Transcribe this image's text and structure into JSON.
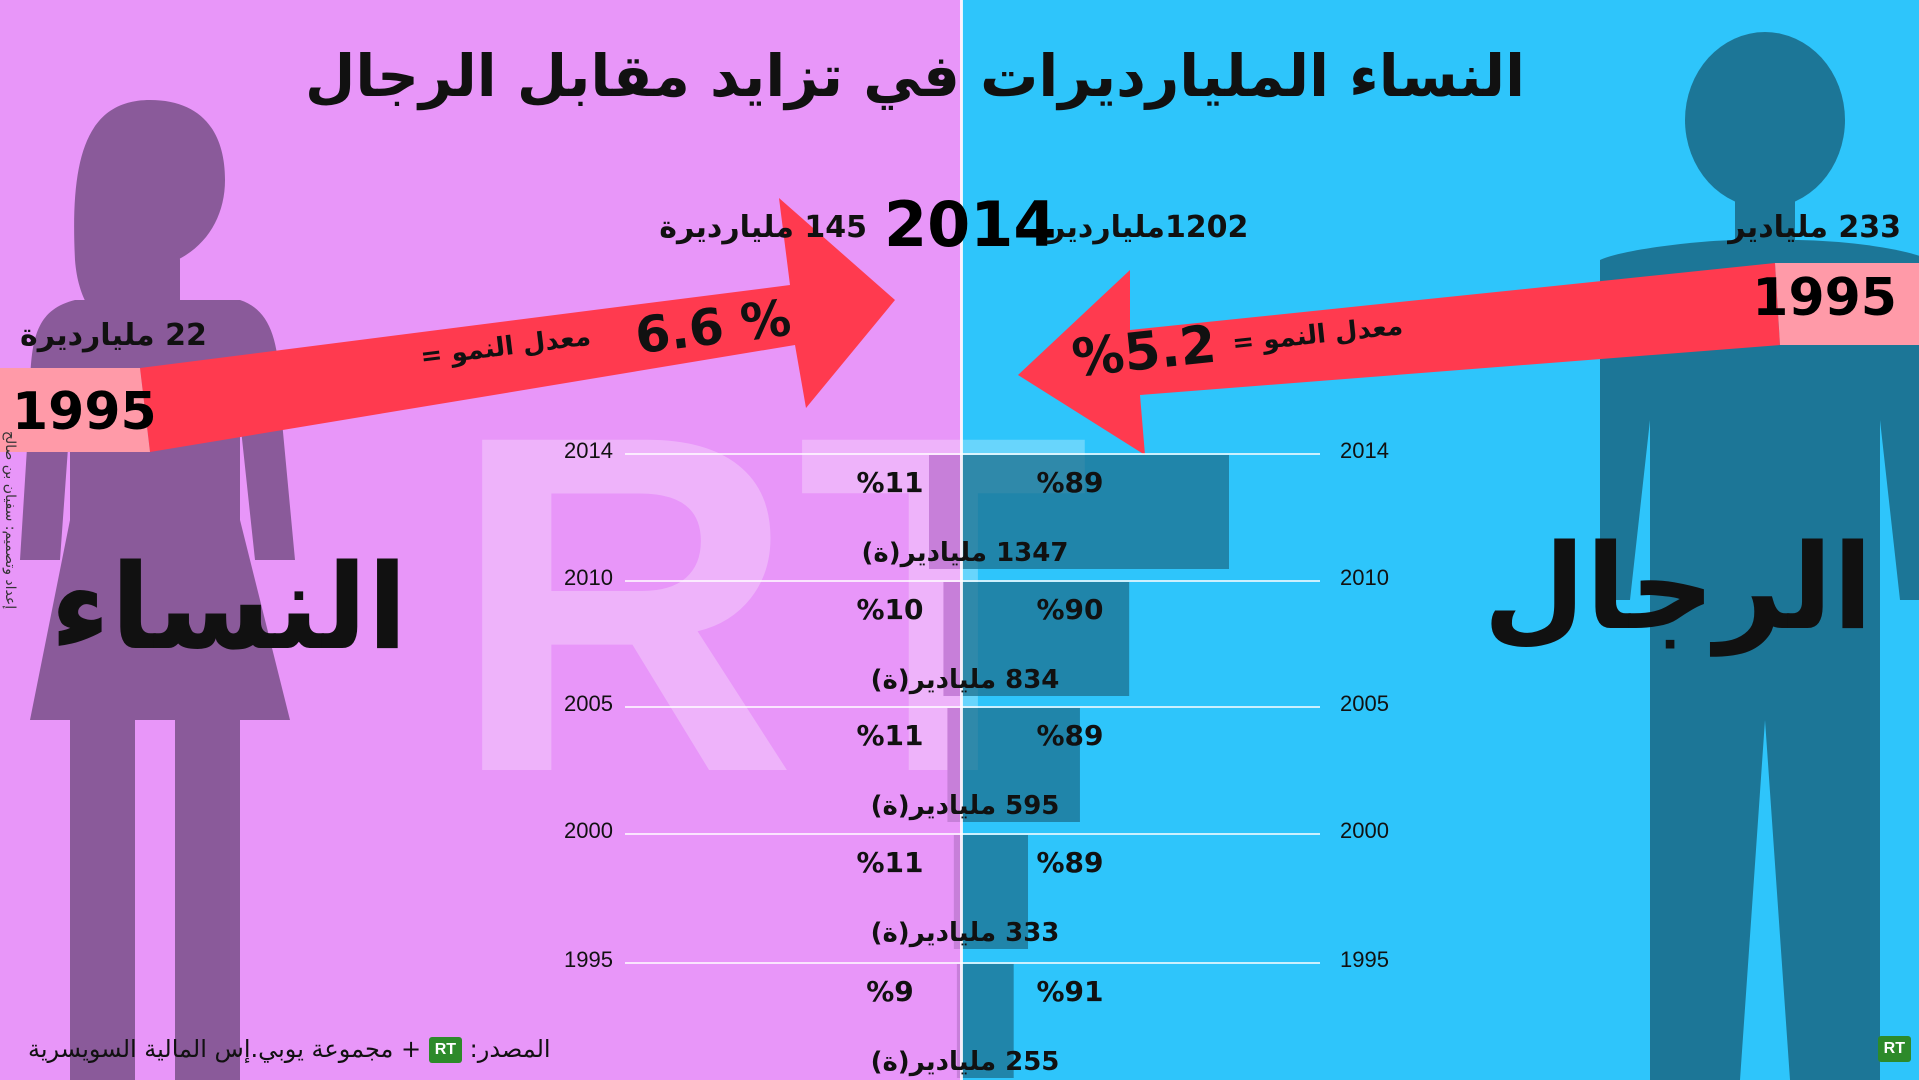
{
  "title": "النساء المليارديرات في تزايد مقابل الرجال",
  "colors": {
    "women_bg": "#e896f9",
    "men_bg": "#2ec5fb",
    "women_silhouette": "#8a5a9a",
    "men_silhouette": "#1c7697",
    "arrow": "#ff3a4f",
    "year_box": "#ff9aa8",
    "men_bar": "#1c6f8f",
    "women_bar": "#c77fd9"
  },
  "header": {
    "year_2014": "2014",
    "women_2014": "145 مليارديرة",
    "men_2014": "1202ملياردير"
  },
  "women": {
    "label": "النساء",
    "year_1995": "1995",
    "count_1995": "22 مليارديرة",
    "growth_label": "معدل النمو =",
    "growth_value": "6.6 %"
  },
  "men": {
    "label": "الرجال",
    "year_1995": "1995",
    "count_1995": "233 مليادير",
    "growth_label": "معدل النمو =",
    "growth_value": "%5.2"
  },
  "chart_data": {
    "type": "bar",
    "categories": [
      "2014",
      "2010",
      "2005",
      "2000",
      "1995"
    ],
    "series": [
      {
        "name": "الرجال",
        "values": [
          89,
          90,
          89,
          89,
          91
        ]
      },
      {
        "name": "النساء",
        "values": [
          11,
          10,
          11,
          11,
          9
        ]
      }
    ],
    "men_pct_labels": [
      "%89",
      "%90",
      "%89",
      "%89",
      "%91"
    ],
    "women_pct_labels": [
      "%11",
      "%10",
      "%11",
      "%11",
      "%9"
    ],
    "totals": [
      1347,
      834,
      595,
      333,
      255
    ],
    "total_labels": [
      "1347 مليادير(ة)",
      "834 مليادير(ة)",
      "595 مليادير(ة)",
      "333 مليادير(ة)",
      "255 مليادير(ة)"
    ]
  },
  "watermark": "RT",
  "credit": "إعداد وتصميم: سفيان بن صالح",
  "source": {
    "label": "المصدر:",
    "badge": "RT",
    "text": "+ مجموعة يوبي.إس المالية السويسرية"
  },
  "corner_badge": "RT"
}
